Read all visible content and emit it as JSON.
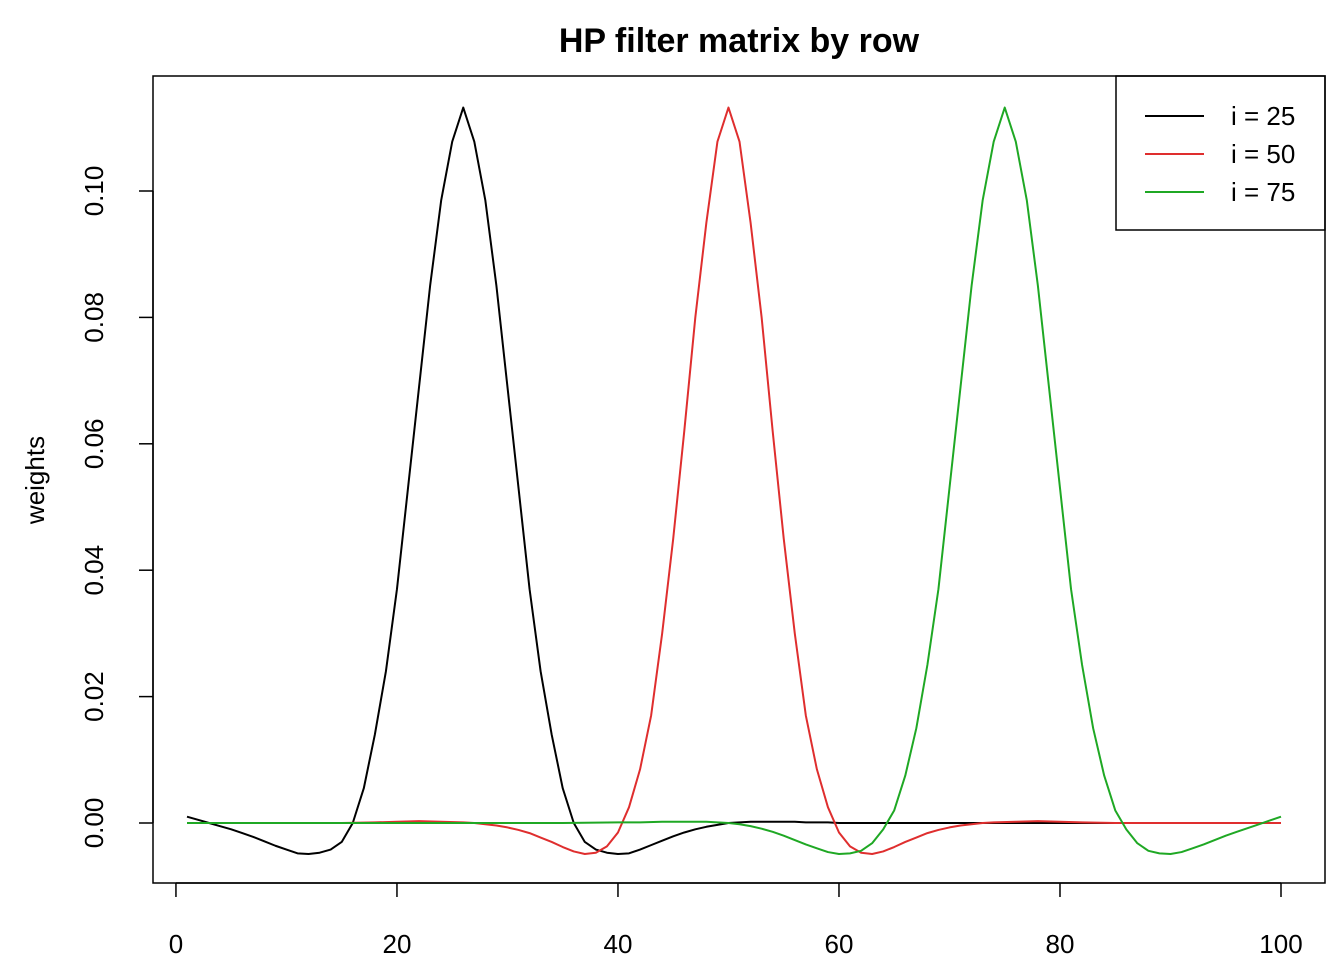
{
  "chart_data": {
    "type": "line",
    "title": "HP filter matrix by row",
    "xlabel": "",
    "ylabel": "weights",
    "xlim": [
      1,
      100
    ],
    "ylim": [
      -0.0095,
      0.1178
    ],
    "x_ticks": [
      0,
      20,
      40,
      60,
      80,
      100
    ],
    "x_tick_labels": [
      "0",
      "20",
      "40",
      "60",
      "80",
      "100"
    ],
    "y_ticks": [
      0.0,
      0.02,
      0.04,
      0.06,
      0.08,
      0.1
    ],
    "y_tick_labels": [
      "0.00",
      "0.02",
      "0.04",
      "0.06",
      "0.08",
      "0.10"
    ],
    "grid": false,
    "legend_position": "top-right",
    "series": [
      {
        "name": "i = 25",
        "color": "#000000",
        "points": [
          [
            1,
            0.001
          ],
          [
            2,
            0.0005
          ],
          [
            3,
            0.0
          ],
          [
            4,
            -0.0005
          ],
          [
            5,
            -0.001
          ],
          [
            6,
            -0.0016
          ],
          [
            7,
            -0.0022
          ],
          [
            8,
            -0.0029
          ],
          [
            9,
            -0.0036
          ],
          [
            10,
            -0.0042
          ],
          [
            11,
            -0.0048
          ],
          [
            12,
            -0.0049
          ],
          [
            13,
            -0.0047
          ],
          [
            14,
            -0.0042
          ],
          [
            15,
            -0.003
          ],
          [
            16,
            0.0
          ],
          [
            17,
            0.0055
          ],
          [
            18,
            0.014
          ],
          [
            19,
            0.024
          ],
          [
            20,
            0.037
          ],
          [
            21,
            0.053
          ],
          [
            22,
            0.069
          ],
          [
            23,
            0.085
          ],
          [
            24,
            0.0985
          ],
          [
            25,
            0.1078
          ],
          [
            26,
            0.1132
          ],
          [
            27,
            0.1078
          ],
          [
            28,
            0.0985
          ],
          [
            29,
            0.085
          ],
          [
            30,
            0.069
          ],
          [
            31,
            0.053
          ],
          [
            32,
            0.037
          ],
          [
            33,
            0.024
          ],
          [
            34,
            0.014
          ],
          [
            35,
            0.0055
          ],
          [
            36,
            0.0
          ],
          [
            37,
            -0.003
          ],
          [
            38,
            -0.0042
          ],
          [
            39,
            -0.0047
          ],
          [
            40,
            -0.0049
          ],
          [
            41,
            -0.0048
          ],
          [
            42,
            -0.0042
          ],
          [
            43,
            -0.0035
          ],
          [
            44,
            -0.0028
          ],
          [
            45,
            -0.0021
          ],
          [
            46,
            -0.0015
          ],
          [
            47,
            -0.001
          ],
          [
            48,
            -0.0006
          ],
          [
            49,
            -0.0003
          ],
          [
            50,
            0.0
          ],
          [
            51,
            0.0001
          ],
          [
            52,
            0.0002
          ],
          [
            53,
            0.0002
          ],
          [
            54,
            0.0002
          ],
          [
            55,
            0.0002
          ],
          [
            56,
            0.0002
          ],
          [
            57,
            0.0001
          ],
          [
            58,
            0.0001
          ],
          [
            59,
            0.0001
          ],
          [
            60,
            0.0
          ],
          [
            65,
            0.0
          ],
          [
            70,
            0.0
          ],
          [
            75,
            0.0
          ],
          [
            80,
            0.0
          ],
          [
            85,
            0.0
          ],
          [
            90,
            0.0
          ],
          [
            95,
            0.0
          ],
          [
            100,
            0.0
          ]
        ]
      },
      {
        "name": "i = 50",
        "color": "#DF2E2E",
        "points": [
          [
            1,
            0.0
          ],
          [
            5,
            0.0
          ],
          [
            10,
            0.0
          ],
          [
            15,
            0.0
          ],
          [
            18,
            0.0001
          ],
          [
            20,
            0.0002
          ],
          [
            22,
            0.0003
          ],
          [
            24,
            0.0002
          ],
          [
            26,
            0.0001
          ],
          [
            27,
            0.0
          ],
          [
            28,
            -0.0002
          ],
          [
            29,
            -0.0004
          ],
          [
            30,
            -0.0007
          ],
          [
            31,
            -0.0011
          ],
          [
            32,
            -0.0016
          ],
          [
            33,
            -0.0023
          ],
          [
            34,
            -0.003
          ],
          [
            35,
            -0.0038
          ],
          [
            36,
            -0.0045
          ],
          [
            37,
            -0.0049
          ],
          [
            38,
            -0.0047
          ],
          [
            39,
            -0.0037
          ],
          [
            40,
            -0.0015
          ],
          [
            41,
            0.0025
          ],
          [
            42,
            0.0085
          ],
          [
            43,
            0.017
          ],
          [
            44,
            0.03
          ],
          [
            45,
            0.045
          ],
          [
            46,
            0.062
          ],
          [
            47,
            0.08
          ],
          [
            48,
            0.095
          ],
          [
            49,
            0.1078
          ],
          [
            50,
            0.1132
          ],
          [
            51,
            0.1078
          ],
          [
            52,
            0.095
          ],
          [
            53,
            0.08
          ],
          [
            54,
            0.062
          ],
          [
            55,
            0.045
          ],
          [
            56,
            0.03
          ],
          [
            57,
            0.017
          ],
          [
            58,
            0.0085
          ],
          [
            59,
            0.0025
          ],
          [
            60,
            -0.0015
          ],
          [
            61,
            -0.0037
          ],
          [
            62,
            -0.0047
          ],
          [
            63,
            -0.0049
          ],
          [
            64,
            -0.0045
          ],
          [
            65,
            -0.0038
          ],
          [
            66,
            -0.003
          ],
          [
            67,
            -0.0023
          ],
          [
            68,
            -0.0016
          ],
          [
            69,
            -0.0011
          ],
          [
            70,
            -0.0007
          ],
          [
            71,
            -0.0004
          ],
          [
            72,
            -0.0002
          ],
          [
            73,
            0.0
          ],
          [
            74,
            0.0001
          ],
          [
            76,
            0.0002
          ],
          [
            78,
            0.0003
          ],
          [
            80,
            0.0002
          ],
          [
            82,
            0.0001
          ],
          [
            85,
            0.0
          ],
          [
            90,
            0.0
          ],
          [
            95,
            0.0
          ],
          [
            100,
            0.0
          ]
        ]
      },
      {
        "name": "i = 75",
        "color": "#1FA824",
        "points": [
          [
            1,
            0.0
          ],
          [
            5,
            0.0
          ],
          [
            10,
            0.0
          ],
          [
            15,
            0.0
          ],
          [
            20,
            0.0
          ],
          [
            25,
            0.0
          ],
          [
            30,
            0.0
          ],
          [
            35,
            0.0
          ],
          [
            40,
            0.0001
          ],
          [
            42,
            0.0001
          ],
          [
            44,
            0.0002
          ],
          [
            46,
            0.0002
          ],
          [
            48,
            0.0002
          ],
          [
            50,
            0.0
          ],
          [
            51,
            -0.0002
          ],
          [
            52,
            -0.0005
          ],
          [
            53,
            -0.0009
          ],
          [
            54,
            -0.0014
          ],
          [
            55,
            -0.002
          ],
          [
            56,
            -0.0027
          ],
          [
            57,
            -0.0034
          ],
          [
            58,
            -0.004
          ],
          [
            59,
            -0.0046
          ],
          [
            60,
            -0.0049
          ],
          [
            61,
            -0.0048
          ],
          [
            62,
            -0.0044
          ],
          [
            63,
            -0.0032
          ],
          [
            64,
            -0.001
          ],
          [
            65,
            0.002
          ],
          [
            66,
            0.0075
          ],
          [
            67,
            0.015
          ],
          [
            68,
            0.025
          ],
          [
            69,
            0.037
          ],
          [
            70,
            0.053
          ],
          [
            71,
            0.069
          ],
          [
            72,
            0.085
          ],
          [
            73,
            0.0985
          ],
          [
            74,
            0.1078
          ],
          [
            75,
            0.1132
          ],
          [
            76,
            0.1078
          ],
          [
            77,
            0.0985
          ],
          [
            78,
            0.085
          ],
          [
            79,
            0.069
          ],
          [
            80,
            0.053
          ],
          [
            81,
            0.037
          ],
          [
            82,
            0.025
          ],
          [
            83,
            0.015
          ],
          [
            84,
            0.0075
          ],
          [
            85,
            0.002
          ],
          [
            86,
            -0.001
          ],
          [
            87,
            -0.0032
          ],
          [
            88,
            -0.0044
          ],
          [
            89,
            -0.0048
          ],
          [
            90,
            -0.0049
          ],
          [
            91,
            -0.0046
          ],
          [
            92,
            -0.004
          ],
          [
            93,
            -0.0034
          ],
          [
            94,
            -0.0027
          ],
          [
            95,
            -0.002
          ],
          [
            96,
            -0.0014
          ],
          [
            97,
            -0.0008
          ],
          [
            98,
            -0.0002
          ],
          [
            99,
            0.0004
          ],
          [
            100,
            0.001
          ]
        ]
      }
    ]
  }
}
